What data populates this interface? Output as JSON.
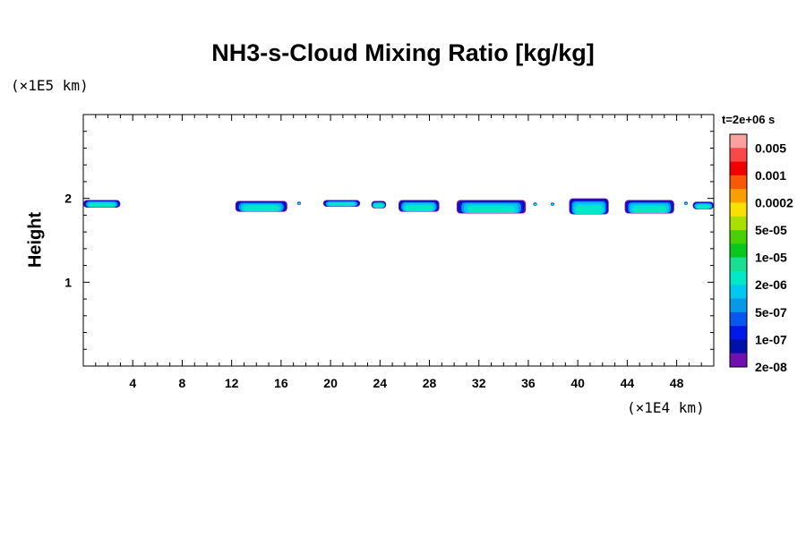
{
  "chart_data": {
    "type": "heatmap",
    "title": "NH3-s-Cloud Mixing Ratio [kg/kg]",
    "ylabel": "Height",
    "x_unit_label": "(×1E4 km)",
    "y_unit_label": "(×1E5 km)",
    "time_label": "t=2e+06 s",
    "xlim": [
      0,
      51
    ],
    "ylim": [
      0,
      3
    ],
    "x_ticks": [
      4,
      8,
      12,
      16,
      20,
      24,
      28,
      32,
      36,
      40,
      44,
      48
    ],
    "y_ticks": [
      1,
      2
    ],
    "colorbar": {
      "labels": [
        "0.005",
        "0.001",
        "0.0002",
        "5e-05",
        "1e-05",
        "2e-06",
        "5e-07",
        "1e-07",
        "2e-08"
      ],
      "colors": [
        "#fca0a0",
        "#f84848",
        "#f00000",
        "#f85808",
        "#f8a000",
        "#f8e000",
        "#a8e000",
        "#48d000",
        "#08c820",
        "#18e090",
        "#00e8c8",
        "#00c8f0",
        "#0898e8",
        "#0858f0",
        "#0018e8",
        "#0010a8",
        "#7010b0"
      ]
    },
    "clouds": [
      {
        "x0": 0.0,
        "x1": 3.0,
        "y_bottom": 1.89,
        "y_top": 1.98
      },
      {
        "x0": 12.3,
        "x1": 16.5,
        "y_bottom": 1.84,
        "y_top": 1.97
      },
      {
        "x0": 17.3,
        "x1": 17.6,
        "y_bottom": 1.92,
        "y_top": 1.96
      },
      {
        "x0": 19.4,
        "x1": 22.4,
        "y_bottom": 1.9,
        "y_top": 1.98
      },
      {
        "x0": 23.3,
        "x1": 24.5,
        "y_bottom": 1.88,
        "y_top": 1.97
      },
      {
        "x0": 25.5,
        "x1": 28.8,
        "y_bottom": 1.84,
        "y_top": 1.98
      },
      {
        "x0": 30.2,
        "x1": 35.8,
        "y_bottom": 1.82,
        "y_top": 1.98
      },
      {
        "x0": 36.4,
        "x1": 36.7,
        "y_bottom": 1.91,
        "y_top": 1.95
      },
      {
        "x0": 37.8,
        "x1": 38.1,
        "y_bottom": 1.91,
        "y_top": 1.95
      },
      {
        "x0": 39.3,
        "x1": 42.5,
        "y_bottom": 1.81,
        "y_top": 2.0
      },
      {
        "x0": 43.8,
        "x1": 47.8,
        "y_bottom": 1.82,
        "y_top": 1.98
      },
      {
        "x0": 48.6,
        "x1": 48.9,
        "y_bottom": 1.92,
        "y_top": 1.96
      },
      {
        "x0": 49.3,
        "x1": 51.0,
        "y_bottom": 1.87,
        "y_top": 1.96
      }
    ]
  }
}
